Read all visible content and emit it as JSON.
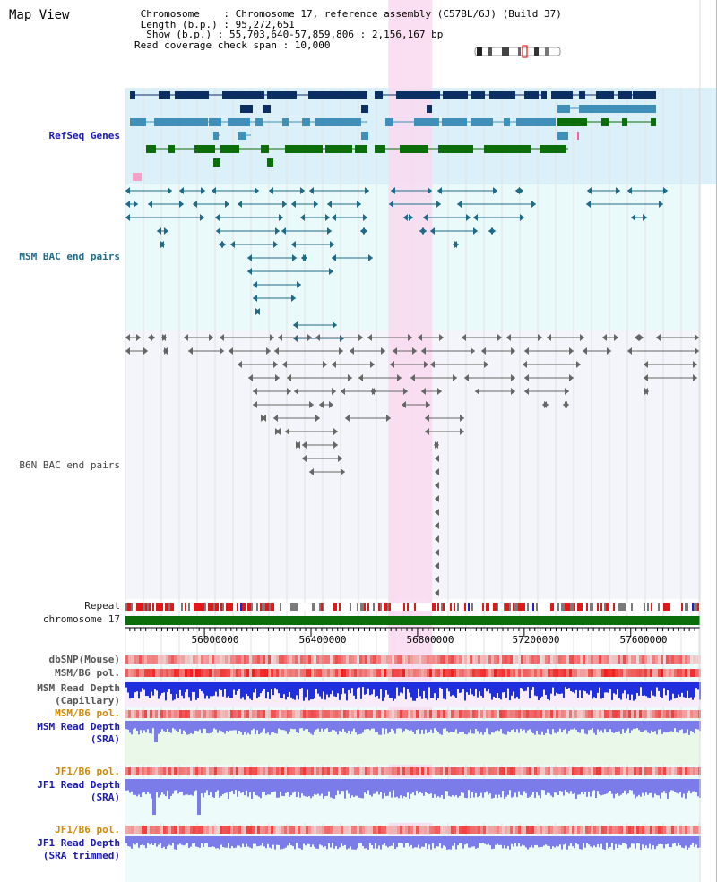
{
  "view_title": "Map View",
  "header": {
    "chromosome_line": " Chromosome    : Chromosome 17, reference assembly (C57BL/6J) (Build 37)",
    "length_line": " Length (b.p.) : 95,272,651",
    "show_line": "  Show (b.p.) : 55,703,640-57,859,806 : 2,156,167 bp",
    "coverage_line": "Read coverage check span : 10,000"
  },
  "tracks": {
    "refseq": "RefSeq Genes",
    "msm_bac": "MSM BAC end pairs",
    "b6n_bac": "B6N BAC end pairs",
    "repeat": "Repeat",
    "chromosome": "chromosome 17",
    "dbsnp": "dbSNP(Mouse)",
    "msm_b6_pol_1": "MSM/B6 pol.",
    "msm_read_depth_cap": "MSM Read Depth\n(Capillary)",
    "msm_b6_pol_2": "MSM/B6 pol.",
    "msm_read_depth_sra": "MSM Read Depth\n(SRA)",
    "jf1_b6_pol_1": "JF1/B6 pol.",
    "jf1_read_depth_sra": "JF1 Read Depth\n(SRA)",
    "jf1_b6_pol_2": "JF1/B6 pol.",
    "jf1_read_depth_trim": "JF1 Read Depth\n(SRA trimmed)"
  },
  "axis": {
    "ticks": [
      "56000000",
      "56400000",
      "56800000",
      "57200000",
      "57600000"
    ],
    "tick_values": [
      56000000,
      56400000,
      56800000,
      57200000,
      57600000
    ],
    "view_start": 55703640,
    "view_end": 57859806
  },
  "highlight_region": {
    "start": 56690000,
    "end": 56855000
  },
  "colors": {
    "highlight": "#f9d9f0",
    "refseq_bg": "#dcf0fa",
    "bac_bg": "#eafafa",
    "gene_dark": "#0b2f63",
    "gene_mid": "#3f8fb8",
    "gene_green": "#0b6e0b",
    "msm_bac": "#1f6b87",
    "b6n_bac": "#666666",
    "chromosome_bar": "#0b6e0b",
    "depth_dark": "#1f2fdd",
    "depth_light": "#7b7bea"
  }
}
